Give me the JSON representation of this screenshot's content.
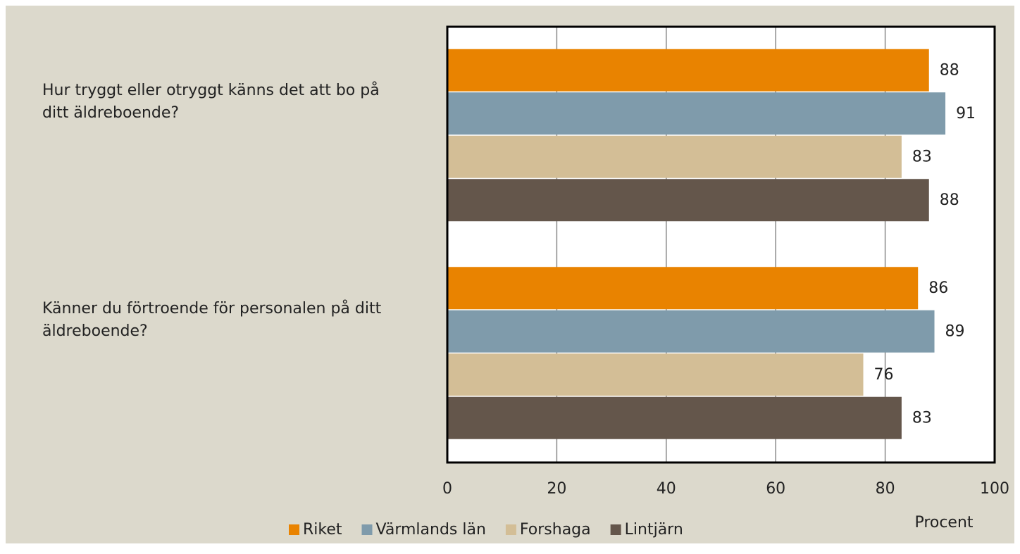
{
  "chart_data": {
    "type": "bar",
    "orientation": "horizontal",
    "categories": [
      "Hur tryggt eller otryggt känns det att bo på ditt äldreboende?",
      "Känner du förtroende för personalen på ditt äldreboende?"
    ],
    "series": [
      {
        "name": "Riket",
        "color": "#e98300",
        "values": [
          88,
          86
        ]
      },
      {
        "name": "Värmlands län",
        "color": "#7f9bab",
        "values": [
          91,
          89
        ]
      },
      {
        "name": "Forshaga",
        "color": "#d3be96",
        "values": [
          83,
          76
        ]
      },
      {
        "name": "Lintjärn",
        "color": "#64564b",
        "values": [
          88,
          83
        ]
      }
    ],
    "xlabel": "Procent",
    "xlim": [
      0,
      100
    ],
    "xticks": [
      0,
      20,
      40,
      60,
      80,
      100
    ],
    "grid": true,
    "legend": "bottom"
  }
}
